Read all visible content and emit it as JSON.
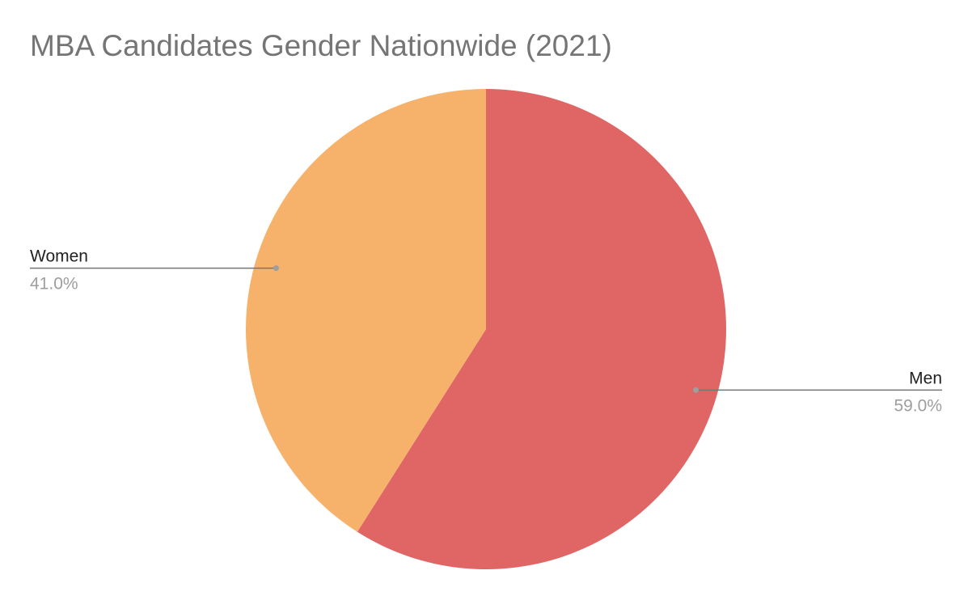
{
  "chart_data": {
    "type": "pie",
    "title": "MBA Candidates Gender Nationwide (2021)",
    "start_angle_deg": 0,
    "direction": "clockwise",
    "slices": [
      {
        "label": "Men",
        "value": 59.0,
        "display": "59.0%",
        "color": "#e06666"
      },
      {
        "label": "Women",
        "value": 41.0,
        "display": "41.0%",
        "color": "#f6b26b"
      }
    ]
  }
}
